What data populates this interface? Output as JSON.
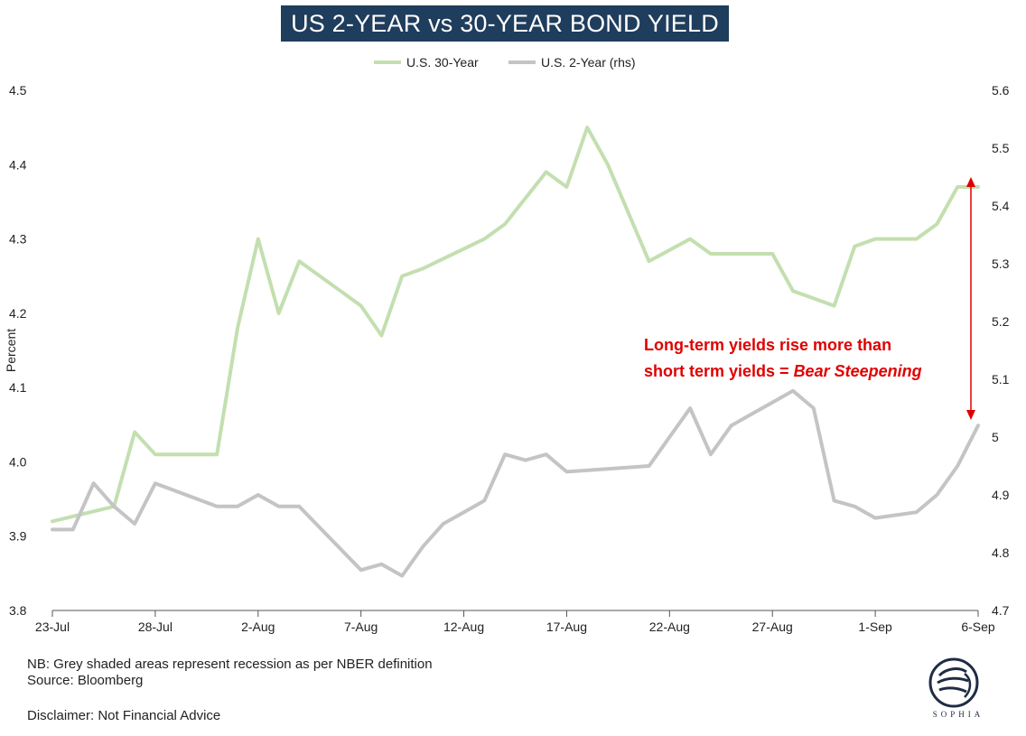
{
  "chart_data": {
    "type": "line",
    "title": "US 2-YEAR vs 30-YEAR BOND YIELD",
    "ylabel": "Percent",
    "ylim_left": [
      3.8,
      4.5
    ],
    "ylim_right": [
      4.7,
      5.6
    ],
    "yticks_left": [
      "3.8",
      "3.9",
      "4.0",
      "4.1",
      "4.2",
      "4.3",
      "4.4",
      "4.5"
    ],
    "yticks_right": [
      "4.7",
      "4.8",
      "4.9",
      "5",
      "5.1",
      "5.2",
      "5.3",
      "5.4",
      "5.5",
      "5.6"
    ],
    "xlim": [
      0,
      45
    ],
    "x_tick_positions": [
      0,
      5,
      10,
      15,
      20,
      25,
      30,
      35,
      40,
      45
    ],
    "x_tick_labels": [
      "23-Jul",
      "28-Jul",
      "2-Aug",
      "7-Aug",
      "12-Aug",
      "17-Aug",
      "22-Aug",
      "27-Aug",
      "1-Sep",
      "6-Sep"
    ],
    "legend_position": "top-center",
    "series": [
      {
        "name": "U.S. 30-Year",
        "axis": "left",
        "color": "#c3dfb0",
        "x": [
          0,
          3,
          4,
          5,
          8,
          9,
          10,
          11,
          12,
          15,
          16,
          17,
          18,
          21,
          22,
          24,
          25,
          26,
          27,
          29,
          31,
          32,
          33,
          34,
          35,
          36,
          37,
          38,
          39,
          40,
          42,
          43,
          44,
          45
        ],
        "values": [
          3.92,
          3.94,
          4.04,
          4.01,
          4.01,
          4.18,
          4.3,
          4.2,
          4.27,
          4.21,
          4.17,
          4.25,
          4.26,
          4.3,
          4.32,
          4.39,
          4.37,
          4.45,
          4.4,
          4.27,
          4.3,
          4.28,
          4.28,
          4.28,
          4.28,
          4.23,
          4.22,
          4.21,
          4.29,
          4.3,
          4.3,
          4.32,
          4.37,
          4.37
        ]
      },
      {
        "name": "U.S. 2-Year (rhs)",
        "axis": "right",
        "color": "#c4c4c4",
        "x": [
          0,
          1,
          2,
          3,
          4,
          5,
          8,
          9,
          10,
          11,
          12,
          15,
          16,
          17,
          18,
          19,
          20,
          21,
          22,
          23,
          24,
          25,
          29,
          30,
          31,
          32,
          33,
          34,
          35,
          36,
          37,
          38,
          39,
          40,
          42,
          43,
          44,
          45
        ],
        "values": [
          4.84,
          4.84,
          4.92,
          4.88,
          4.85,
          4.92,
          4.88,
          4.88,
          4.9,
          4.88,
          4.88,
          4.77,
          4.78,
          4.76,
          4.81,
          4.85,
          4.87,
          4.89,
          4.97,
          4.96,
          4.97,
          4.94,
          4.95,
          5.0,
          5.05,
          4.97,
          5.02,
          5.04,
          5.06,
          5.08,
          5.05,
          4.89,
          4.88,
          4.86,
          4.87,
          4.9,
          4.95,
          5.02
        ]
      }
    ],
    "annotation": {
      "line1": "Long-term yields rise more than",
      "line2_prefix": "short term yields = ",
      "line2_emphasis": "Bear Steepening",
      "color": "#e00000"
    }
  },
  "footnotes": {
    "nb": "NB: Grey shaded areas represent recession as per NBER definition",
    "source": "Source: Bloomberg",
    "disclaimer": "Disclaimer: Not Financial Advice"
  },
  "logo": {
    "text": "SOPHIA",
    "icon": "sophia-portrait-icon"
  }
}
